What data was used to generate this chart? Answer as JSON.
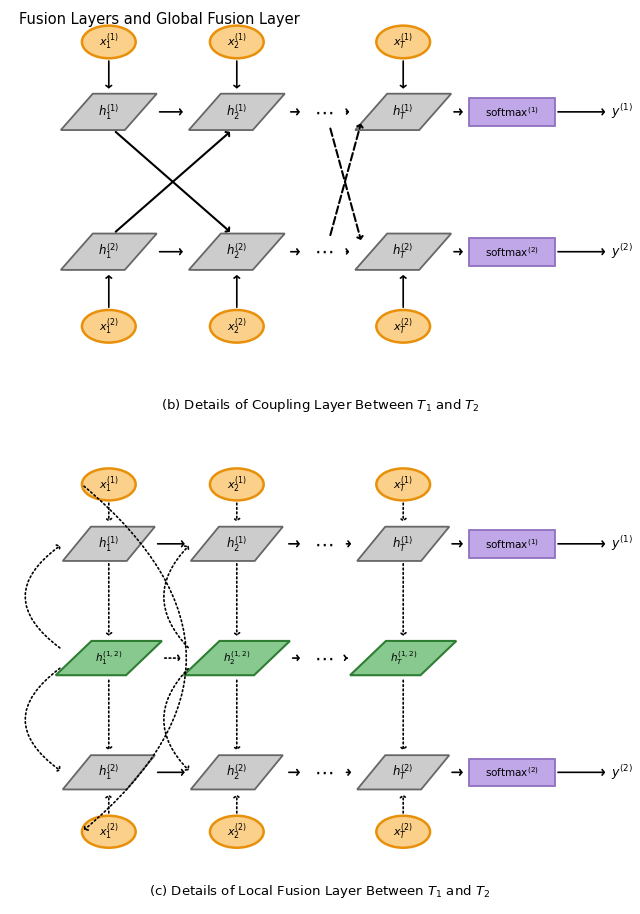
{
  "fig_width": 6.4,
  "fig_height": 9.14,
  "orange_edge": "#E8900A",
  "orange_face": "#FAD08A",
  "gray_face": "#CCCCCC",
  "gray_edge": "#666666",
  "purple_face": "#C0A8E8",
  "purple_edge": "#9070C0",
  "green_face": "#88C990",
  "green_edge": "#2E7D32",
  "black": "#111111"
}
